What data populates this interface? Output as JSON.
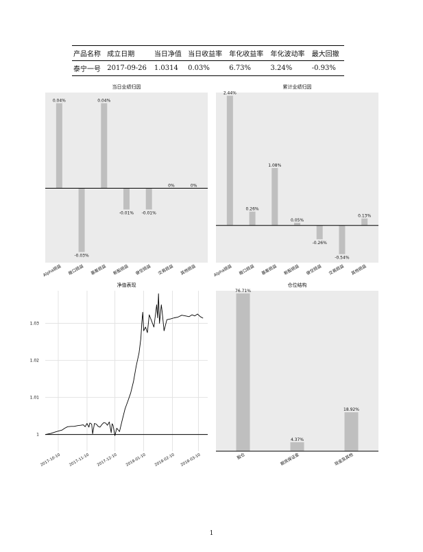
{
  "summary_table": {
    "headers": [
      "产品名称",
      "成立日期",
      "当日净值",
      "当日收益率",
      "年化收益率",
      "年化波动率",
      "最大回撤"
    ],
    "row": [
      "泰宁一号",
      "2017-09-26",
      "1.0314",
      "0.03%",
      "6.73%",
      "3.24%",
      "-0.93%"
    ]
  },
  "page_number": "1",
  "chart_data": [
    {
      "id": "daily-attribution",
      "type": "bar",
      "title": "当日业绩归因",
      "categories": [
        "Alpha损益",
        "敞口损益",
        "基差损益",
        "新股损益",
        "做空损益",
        "交易损益",
        "其他损益"
      ],
      "values": [
        0.04,
        -0.03,
        0.04,
        -0.01,
        -0.01,
        0,
        0
      ],
      "value_labels": [
        "0.04%",
        "-0.03%",
        "0.04%",
        "-0.01%",
        "-0.01%",
        "0%",
        "0%"
      ],
      "ylim": [
        -0.035,
        0.045
      ],
      "bar_color": "#bfbfbf",
      "background": "#ebebeb"
    },
    {
      "id": "cumulative-attribution",
      "type": "bar",
      "title": "累计业绩归因",
      "categories": [
        "Alpha损益",
        "敞口损益",
        "基差损益",
        "新股损益",
        "做空损益",
        "交易损益",
        "其他损益"
      ],
      "values": [
        2.44,
        0.26,
        1.08,
        0.05,
        -0.26,
        -0.54,
        0.13
      ],
      "value_labels": [
        "2.44%",
        "0.26%",
        "1.08%",
        "0.05%",
        "-0.26%",
        "-0.54%",
        "0.13%"
      ],
      "ylim": [
        -0.7,
        2.5
      ],
      "bar_color": "#bfbfbf",
      "background": "#ebebeb"
    },
    {
      "id": "nav-performance",
      "type": "line",
      "title": "净值表现",
      "x_ticks": [
        "2017-10-10",
        "2017-11-10",
        "2017-12-10",
        "2018-01-10",
        "2018-02-10",
        "2018-03-10"
      ],
      "y_ticks": [
        "1",
        "1.01",
        "1.02",
        "1.03"
      ],
      "xlim": [
        "2017-09-26",
        "2018-03-20"
      ],
      "ylim": [
        0.9955,
        1.0388
      ],
      "baseline": 1,
      "x": [
        "2017-09-26",
        "2017-10-02",
        "2017-10-08",
        "2017-10-14",
        "2017-10-17",
        "2017-10-20",
        "2017-10-24",
        "2017-10-27",
        "2017-10-31",
        "2017-11-03",
        "2017-11-06",
        "2017-11-08",
        "2017-11-10",
        "2017-11-12",
        "2017-11-13",
        "2017-11-15",
        "2017-11-16",
        "2017-11-18",
        "2017-11-20",
        "2017-11-22",
        "2017-11-24",
        "2017-11-26",
        "2017-11-28",
        "2017-11-30",
        "2017-12-02",
        "2017-12-04",
        "2017-12-06",
        "2017-12-07",
        "2017-12-08",
        "2017-12-10",
        "2017-12-12",
        "2017-12-15",
        "2017-12-18",
        "2017-12-21",
        "2017-12-24",
        "2017-12-27",
        "2017-12-30",
        "2018-01-02",
        "2018-01-05",
        "2018-01-07",
        "2018-01-08",
        "2018-01-09",
        "2018-01-10",
        "2018-01-12",
        "2018-01-14",
        "2018-01-16",
        "2018-01-18",
        "2018-01-21",
        "2018-01-24",
        "2018-01-25",
        "2018-01-26",
        "2018-01-27",
        "2018-01-29",
        "2018-01-30",
        "2018-02-01",
        "2018-02-04",
        "2018-02-08",
        "2018-02-12",
        "2018-02-16",
        "2018-02-20",
        "2018-02-24",
        "2018-02-28",
        "2018-03-03",
        "2018-03-06",
        "2018-03-09",
        "2018-03-12",
        "2018-03-15"
      ],
      "y": [
        1.0,
        1.0003,
        1.0008,
        1.0012,
        1.0017,
        1.0021,
        1.0022,
        1.0022,
        1.0024,
        1.0025,
        1.0026,
        1.0021,
        1.003,
        1.002,
        1.0031,
        1.0028,
        1.0002,
        1.003,
        1.0028,
        1.0022,
        1.002,
        1.0027,
        1.0032,
        1.0031,
        1.0025,
        1.0034,
        1.0005,
        1.0029,
        1.0025,
        0.9997,
        1.0017,
        1.0008,
        1.004,
        1.007,
        1.009,
        1.0112,
        1.0143,
        1.0185,
        1.022,
        1.026,
        1.03,
        1.033,
        1.028,
        1.029,
        1.0275,
        1.0323,
        1.031,
        1.029,
        1.035,
        1.0315,
        1.038,
        1.03,
        1.035,
        1.033,
        1.028,
        1.031,
        1.0312,
        1.0315,
        1.0317,
        1.0322,
        1.032,
        1.0318,
        1.0323,
        1.032,
        1.0325,
        1.0318,
        1.0314
      ],
      "line_color": "#000000",
      "background": "#ffffff"
    },
    {
      "id": "position-structure",
      "type": "bar",
      "title": "仓位结构",
      "categories": [
        "股仓",
        "期货保证金",
        "现金及其他"
      ],
      "values": [
        76.71,
        4.37,
        18.92
      ],
      "value_labels": [
        "76.71%",
        "4.37%",
        "18.92%"
      ],
      "ylim": [
        0,
        78
      ],
      "bar_color": "#bfbfbf",
      "background": "#ebebeb"
    }
  ]
}
